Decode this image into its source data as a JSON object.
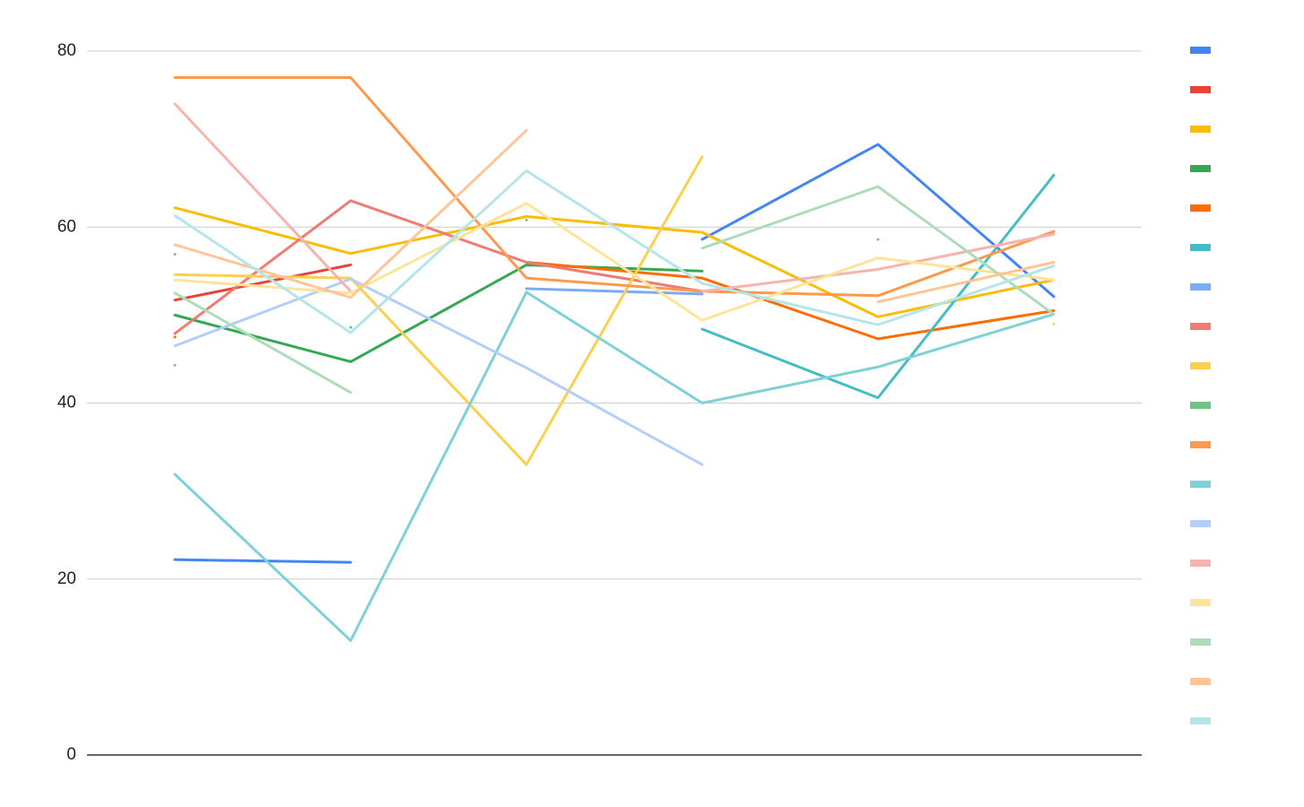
{
  "chart_data": {
    "type": "line",
    "categories": [
      null,
      null,
      null,
      null,
      null,
      null
    ],
    "series": [
      {
        "color": "#4285f4",
        "values": [
          22.2,
          21.9,
          null,
          58.6,
          69.4,
          52.1
        ]
      },
      {
        "color": "#ea4335",
        "values": [
          51.7,
          55.7,
          null,
          null,
          null,
          null
        ]
      },
      {
        "color": "#fbbc04",
        "values": [
          62.2,
          57.0,
          61.2,
          59.4,
          49.8,
          54.0
        ]
      },
      {
        "color": "#34a853",
        "values": [
          50.0,
          44.7,
          55.7,
          55.0,
          null,
          null
        ]
      },
      {
        "color": "#ff6d01",
        "values": [
          47.5,
          null,
          56.0,
          54.2,
          47.3,
          50.5
        ]
      },
      {
        "color": "#46bdc6",
        "values": [
          null,
          48.6,
          null,
          48.4,
          40.6,
          65.9
        ]
      },
      {
        "color": "#7baaf7",
        "values": [
          44.3,
          null,
          53.0,
          52.4,
          null,
          null
        ]
      },
      {
        "color": "#f07b72",
        "values": [
          47.9,
          63.0,
          56.0,
          52.7,
          null,
          null
        ]
      },
      {
        "color": "#fcd04f",
        "values": [
          54.6,
          54.2,
          33.0,
          68.0,
          null,
          49.0
        ]
      },
      {
        "color": "#71c287",
        "values": [
          56.9,
          null,
          60.8,
          null,
          58.6,
          null
        ]
      },
      {
        "color": "#ff994d",
        "values": [
          77.0,
          77.0,
          54.2,
          52.7,
          52.2,
          59.5
        ]
      },
      {
        "color": "#7ed1d7",
        "values": [
          31.9,
          13.0,
          52.6,
          40.0,
          44.1,
          50.1
        ]
      },
      {
        "color": "#b3cefb",
        "values": [
          46.5,
          54.1,
          44.0,
          33.0,
          null,
          null
        ]
      },
      {
        "color": "#f7b4ae",
        "values": [
          74.0,
          52.7,
          null,
          52.7,
          55.2,
          59.2
        ]
      },
      {
        "color": "#fde49b",
        "values": [
          54.0,
          52.5,
          62.7,
          49.4,
          56.5,
          54.0
        ]
      },
      {
        "color": "#aedcba",
        "values": [
          52.5,
          41.2,
          null,
          57.6,
          64.6,
          50.1
        ]
      },
      {
        "color": "#ffc599",
        "values": [
          58.0,
          52.0,
          71.0,
          null,
          51.5,
          56.0
        ]
      },
      {
        "color": "#b5e5e8",
        "values": [
          61.3,
          48.0,
          66.4,
          53.6,
          48.9,
          55.6
        ]
      }
    ],
    "ylim": [
      0,
      80
    ],
    "yticks": [
      0,
      20,
      40,
      60,
      80
    ],
    "grid": true
  }
}
